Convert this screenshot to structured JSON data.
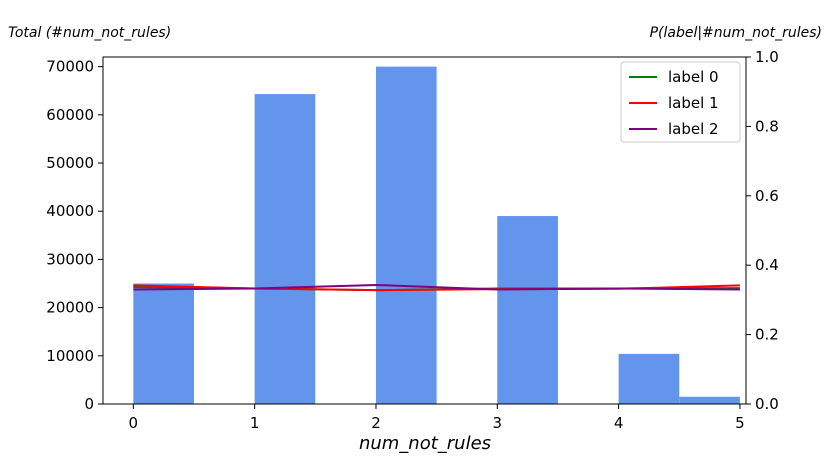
{
  "chart_data": {
    "type": "bar",
    "left_axis_title": "Total (#num_not_rules)",
    "right_axis_title": "P(label|#num_not_rules)",
    "xlabel": "num_not_rules",
    "xlim": [
      -0.25,
      5.05
    ],
    "ylim_left": [
      0,
      72000
    ],
    "ylim_right": [
      0.0,
      1.0
    ],
    "x_ticks": [
      0,
      1,
      2,
      3,
      4,
      5
    ],
    "y_left_ticks": [
      0,
      10000,
      20000,
      30000,
      40000,
      50000,
      60000,
      70000
    ],
    "y_right_ticks": [
      "0.0",
      "0.2",
      "0.4",
      "0.6",
      "0.8",
      "1.0"
    ],
    "bar_color": "#6495ED",
    "bars": [
      {
        "x0": 0.0,
        "x1": 0.5,
        "value": 25000
      },
      {
        "x0": 1.0,
        "x1": 1.5,
        "value": 64300
      },
      {
        "x0": 2.0,
        "x1": 2.5,
        "value": 70000
      },
      {
        "x0": 3.0,
        "x1": 3.5,
        "value": 39000
      },
      {
        "x0": 4.0,
        "x1": 4.5,
        "value": 10400
      },
      {
        "x0": 4.5,
        "x1": 5.0,
        "value": 1500
      }
    ],
    "x": [
      0,
      1,
      2,
      3,
      4,
      5
    ],
    "series": [
      {
        "name": "label 0",
        "color": "#008000",
        "values": [
          0.337,
          0.333,
          0.328,
          0.333,
          0.333,
          0.334
        ]
      },
      {
        "name": "label 1",
        "color": "#FF0000",
        "values": [
          0.342,
          0.333,
          0.328,
          0.331,
          0.332,
          0.342
        ]
      },
      {
        "name": "label 2",
        "color": "#800080",
        "values": [
          0.33,
          0.333,
          0.343,
          0.33,
          0.333,
          0.33
        ]
      }
    ],
    "legend_position": "top-right",
    "grid": false
  }
}
